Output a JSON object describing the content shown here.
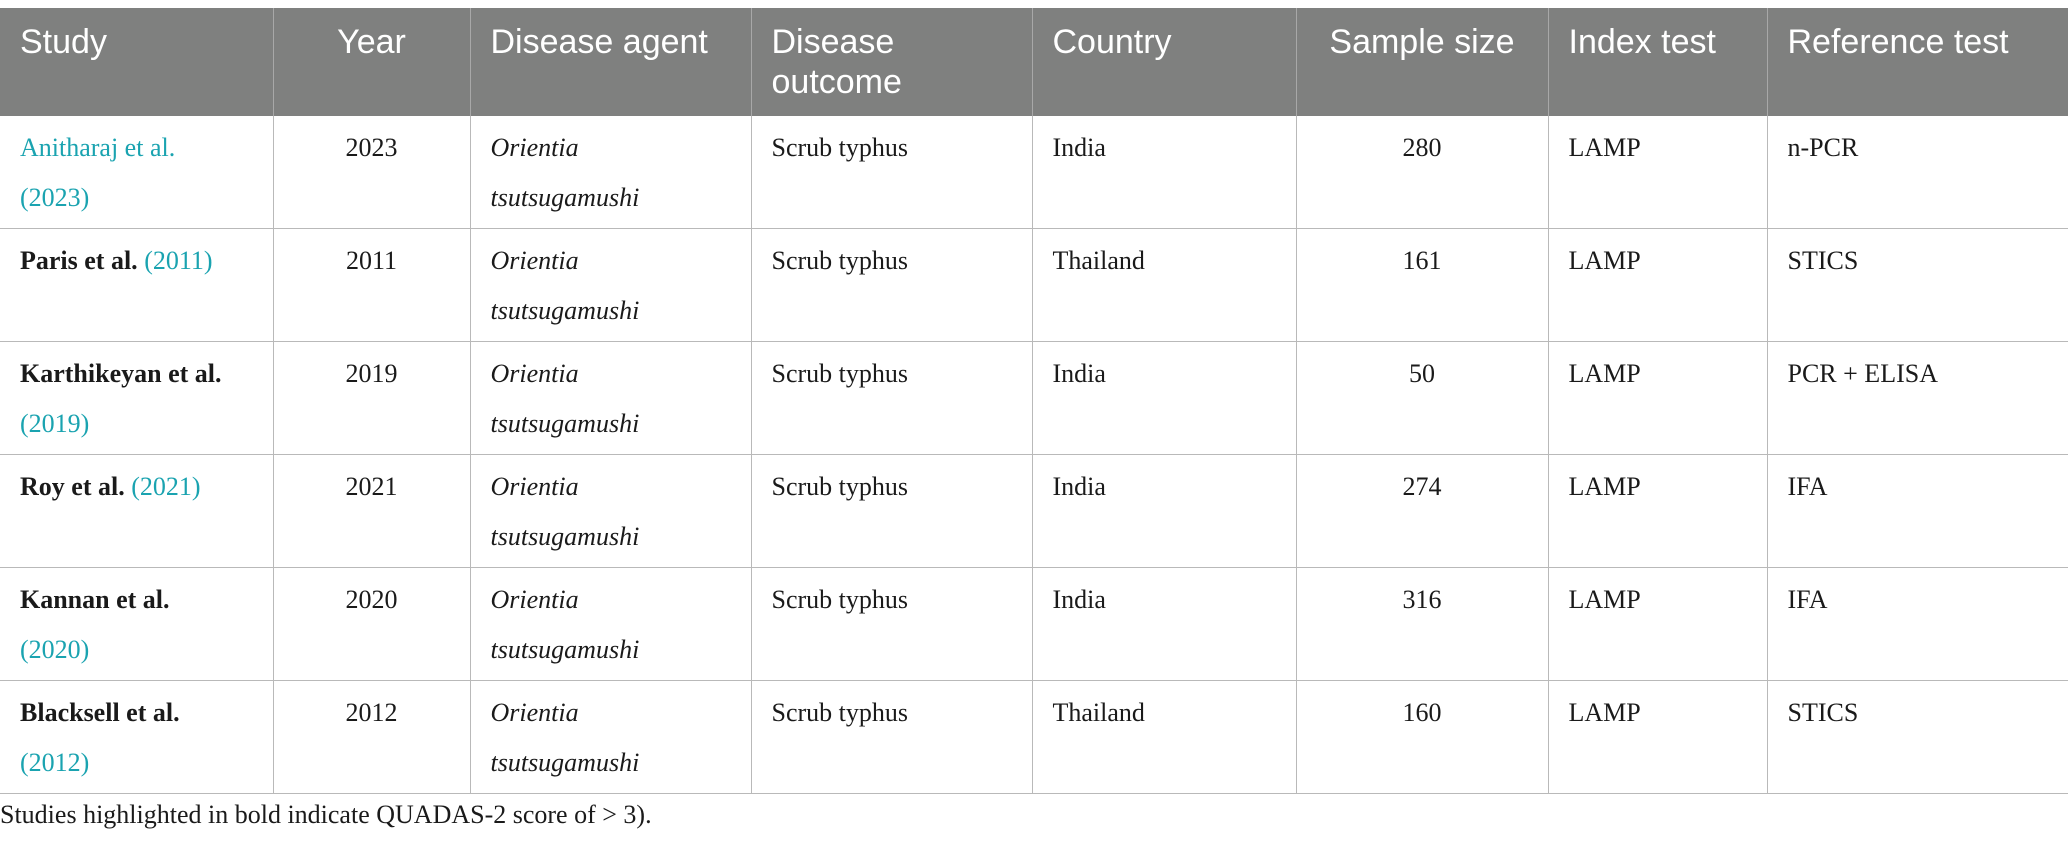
{
  "headers": [
    "Study",
    "Year",
    "Disease agent",
    "Disease outcome",
    "Country",
    "Sample size",
    "Index test",
    "Reference test"
  ],
  "rows": [
    {
      "author": "Anitharaj et al.",
      "cite_year": "(2023)",
      "year": "2023",
      "agent": "Orientia tsutsugamushi",
      "outcome": "Scrub typhus",
      "country": "India",
      "sample": "280",
      "index": "LAMP",
      "reference": "n-PCR"
    },
    {
      "author": "Paris et al.",
      "cite_year": "(2011)",
      "year": "2011",
      "agent": "Orientia tsutsugamushi",
      "outcome": "Scrub typhus",
      "country": "Thailand",
      "sample": "161",
      "index": "LAMP",
      "reference": "STICS"
    },
    {
      "author": "Karthikeyan et al.",
      "cite_year": "(2019)",
      "year": "2019",
      "agent": "Orientia tsutsugamushi",
      "outcome": "Scrub typhus",
      "country": "India",
      "sample": "50",
      "index": "LAMP",
      "reference": "PCR + ELISA"
    },
    {
      "author": "Roy et al.",
      "cite_year": "(2021)",
      "year": "2021",
      "agent": "Orientia tsutsugamushi",
      "outcome": "Scrub typhus",
      "country": "India",
      "sample": "274",
      "index": "LAMP",
      "reference": "IFA"
    },
    {
      "author": "Kannan et al.",
      "cite_year": "(2020)",
      "year": "2020",
      "agent": "Orientia tsutsugamushi",
      "outcome": "Scrub typhus",
      "country": "India",
      "sample": "316",
      "index": "LAMP",
      "reference": "IFA"
    },
    {
      "author": "Blacksell et al.",
      "cite_year": "(2012)",
      "year": "2012",
      "agent": "Orientia tsutsugamushi",
      "outcome": "Scrub typhus",
      "country": "Thailand",
      "sample": "160",
      "index": "LAMP",
      "reference": "STICS"
    }
  ],
  "footnote": "Studies highlighted in bold indicate QUADAS-2 score of > 3).",
  "colors": {
    "header_bg": "#7f807f",
    "link": "#1aa3b0",
    "border": "#b9b9b9"
  }
}
